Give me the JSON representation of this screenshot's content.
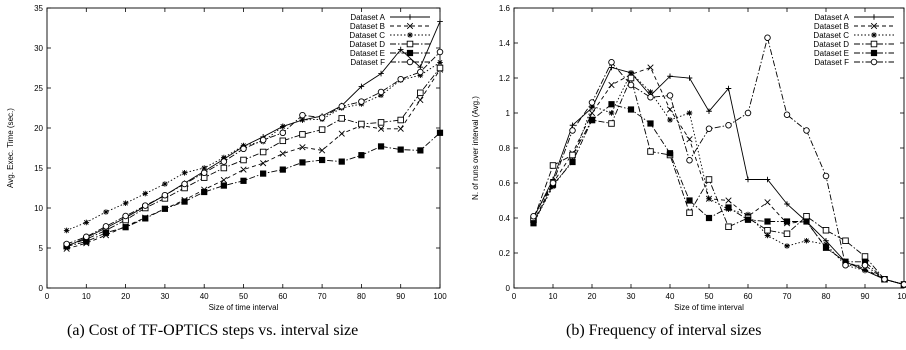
{
  "captions": {
    "a": "(a)  Cost of TF-OPTICS steps vs. interval size",
    "b": "(b)  Frequency of interval sizes"
  },
  "chart_data": [
    {
      "type": "line",
      "xlabel": "Size of time interval",
      "ylabel": "Avg. Exec. Time (sec.)",
      "xlim": [
        0,
        100
      ],
      "ylim": [
        0,
        35
      ],
      "xticks": [
        0,
        10,
        20,
        30,
        40,
        50,
        60,
        70,
        80,
        90,
        100
      ],
      "yticks": [
        0,
        5,
        10,
        15,
        20,
        25,
        30,
        35
      ],
      "grid": false,
      "legend_position": "top-right",
      "x": [
        5,
        10,
        15,
        20,
        25,
        30,
        35,
        40,
        45,
        50,
        55,
        60,
        65,
        70,
        75,
        80,
        85,
        90,
        95,
        100
      ],
      "series": [
        {
          "name": "Dataset A",
          "marker": "plus",
          "dash": "solid",
          "values": [
            5.2,
            6.3,
            7.5,
            8.8,
            10.2,
            11.6,
            13.1,
            14.6,
            16.1,
            17.7,
            18.9,
            20.2,
            21.0,
            21.5,
            22.8,
            25.2,
            26.8,
            29.8,
            27.6,
            33.3
          ]
        },
        {
          "name": "Dataset B",
          "marker": "x",
          "dash": "dashed",
          "values": [
            4.9,
            5.6,
            6.6,
            7.7,
            8.8,
            9.9,
            11.0,
            12.3,
            13.5,
            14.8,
            15.6,
            16.8,
            17.6,
            17.2,
            19.3,
            20.3,
            19.9,
            19.9,
            23.5,
            27.3
          ]
        },
        {
          "name": "Dataset C",
          "marker": "star",
          "dash": "dotted",
          "values": [
            7.2,
            8.2,
            9.5,
            10.6,
            11.8,
            13.0,
            14.4,
            15.0,
            16.3,
            17.8,
            18.3,
            20.2,
            21.0,
            21.1,
            22.5,
            23.0,
            24.1,
            26.0,
            26.6,
            28.2
          ]
        },
        {
          "name": "Dataset D",
          "marker": "square",
          "dash": "dashdot",
          "values": [
            5.3,
            6.1,
            7.2,
            8.5,
            10.0,
            11.2,
            12.5,
            13.8,
            15.0,
            16.0,
            17.0,
            18.4,
            19.2,
            19.8,
            21.2,
            20.5,
            20.7,
            21.0,
            24.4,
            27.5
          ]
        },
        {
          "name": "Dataset E",
          "marker": "filled-square",
          "dash": "dashdot",
          "values": [
            5.2,
            5.8,
            6.9,
            7.6,
            8.7,
            9.9,
            10.8,
            12.0,
            12.8,
            13.4,
            14.3,
            14.8,
            15.7,
            16.0,
            15.8,
            16.6,
            17.7,
            17.3,
            17.2,
            19.4
          ]
        },
        {
          "name": "Dataset F",
          "marker": "circle",
          "dash": "dashdot",
          "values": [
            5.5,
            6.4,
            7.7,
            9.0,
            10.3,
            11.6,
            13.0,
            14.4,
            15.8,
            17.4,
            18.5,
            19.4,
            21.6,
            21.3,
            22.7,
            23.3,
            24.5,
            26.1,
            27.0,
            29.5
          ]
        }
      ]
    },
    {
      "type": "line",
      "xlabel": "Size of time interval",
      "ylabel": "N. of runs over interval (Avg.)",
      "xlim": [
        0,
        100
      ],
      "ylim": [
        0,
        1.6
      ],
      "xticks": [
        0,
        10,
        20,
        30,
        40,
        50,
        60,
        70,
        80,
        90,
        100
      ],
      "yticks": [
        0,
        0.2,
        0.4,
        0.6,
        0.8,
        1,
        1.2,
        1.4,
        1.6
      ],
      "grid": false,
      "legend_position": "top-right",
      "x": [
        5,
        10,
        15,
        20,
        25,
        30,
        35,
        40,
        45,
        50,
        55,
        60,
        65,
        70,
        75,
        80,
        85,
        90,
        95,
        100
      ],
      "series": [
        {
          "name": "Dataset A",
          "marker": "plus",
          "dash": "solid",
          "values": [
            0.4,
            0.62,
            0.93,
            1.03,
            1.26,
            1.23,
            1.1,
            1.21,
            1.2,
            1.01,
            1.14,
            0.62,
            0.62,
            0.48,
            0.38,
            0.27,
            0.15,
            0.1,
            0.05,
            0.02
          ]
        },
        {
          "name": "Dataset B",
          "marker": "x",
          "dash": "dashed",
          "values": [
            0.38,
            0.6,
            0.77,
            1.0,
            1.16,
            1.22,
            1.26,
            1.02,
            0.85,
            0.51,
            0.5,
            0.41,
            0.49,
            0.37,
            0.38,
            0.23,
            0.15,
            0.11,
            0.05,
            0.02
          ]
        },
        {
          "name": "Dataset C",
          "marker": "star",
          "dash": "dotted",
          "values": [
            0.37,
            0.58,
            0.73,
            1.04,
            1.0,
            1.23,
            1.12,
            0.96,
            1.0,
            0.51,
            0.45,
            0.42,
            0.3,
            0.24,
            0.27,
            0.25,
            0.13,
            0.1,
            0.05,
            0.02
          ]
        },
        {
          "name": "Dataset D",
          "marker": "square",
          "dash": "dashdot",
          "values": [
            0.39,
            0.7,
            0.76,
            0.96,
            0.94,
            1.2,
            0.78,
            0.76,
            0.43,
            0.62,
            0.35,
            0.4,
            0.33,
            0.31,
            0.41,
            0.33,
            0.27,
            0.18,
            0.05,
            0.02
          ]
        },
        {
          "name": "Dataset E",
          "marker": "filled-square",
          "dash": "dashdot",
          "values": [
            0.37,
            0.59,
            0.72,
            0.96,
            1.05,
            1.02,
            0.94,
            0.77,
            0.5,
            0.4,
            0.46,
            0.39,
            0.38,
            0.38,
            0.38,
            0.23,
            0.15,
            0.15,
            0.05,
            0.02
          ]
        },
        {
          "name": "Dataset F",
          "marker": "circle",
          "dash": "dashdot",
          "values": [
            0.41,
            0.6,
            0.9,
            1.06,
            1.29,
            1.16,
            1.09,
            1.1,
            0.73,
            0.91,
            0.93,
            1.0,
            1.43,
            0.99,
            0.9,
            0.64,
            0.13,
            0.13,
            0.05,
            0.02
          ]
        }
      ]
    }
  ]
}
